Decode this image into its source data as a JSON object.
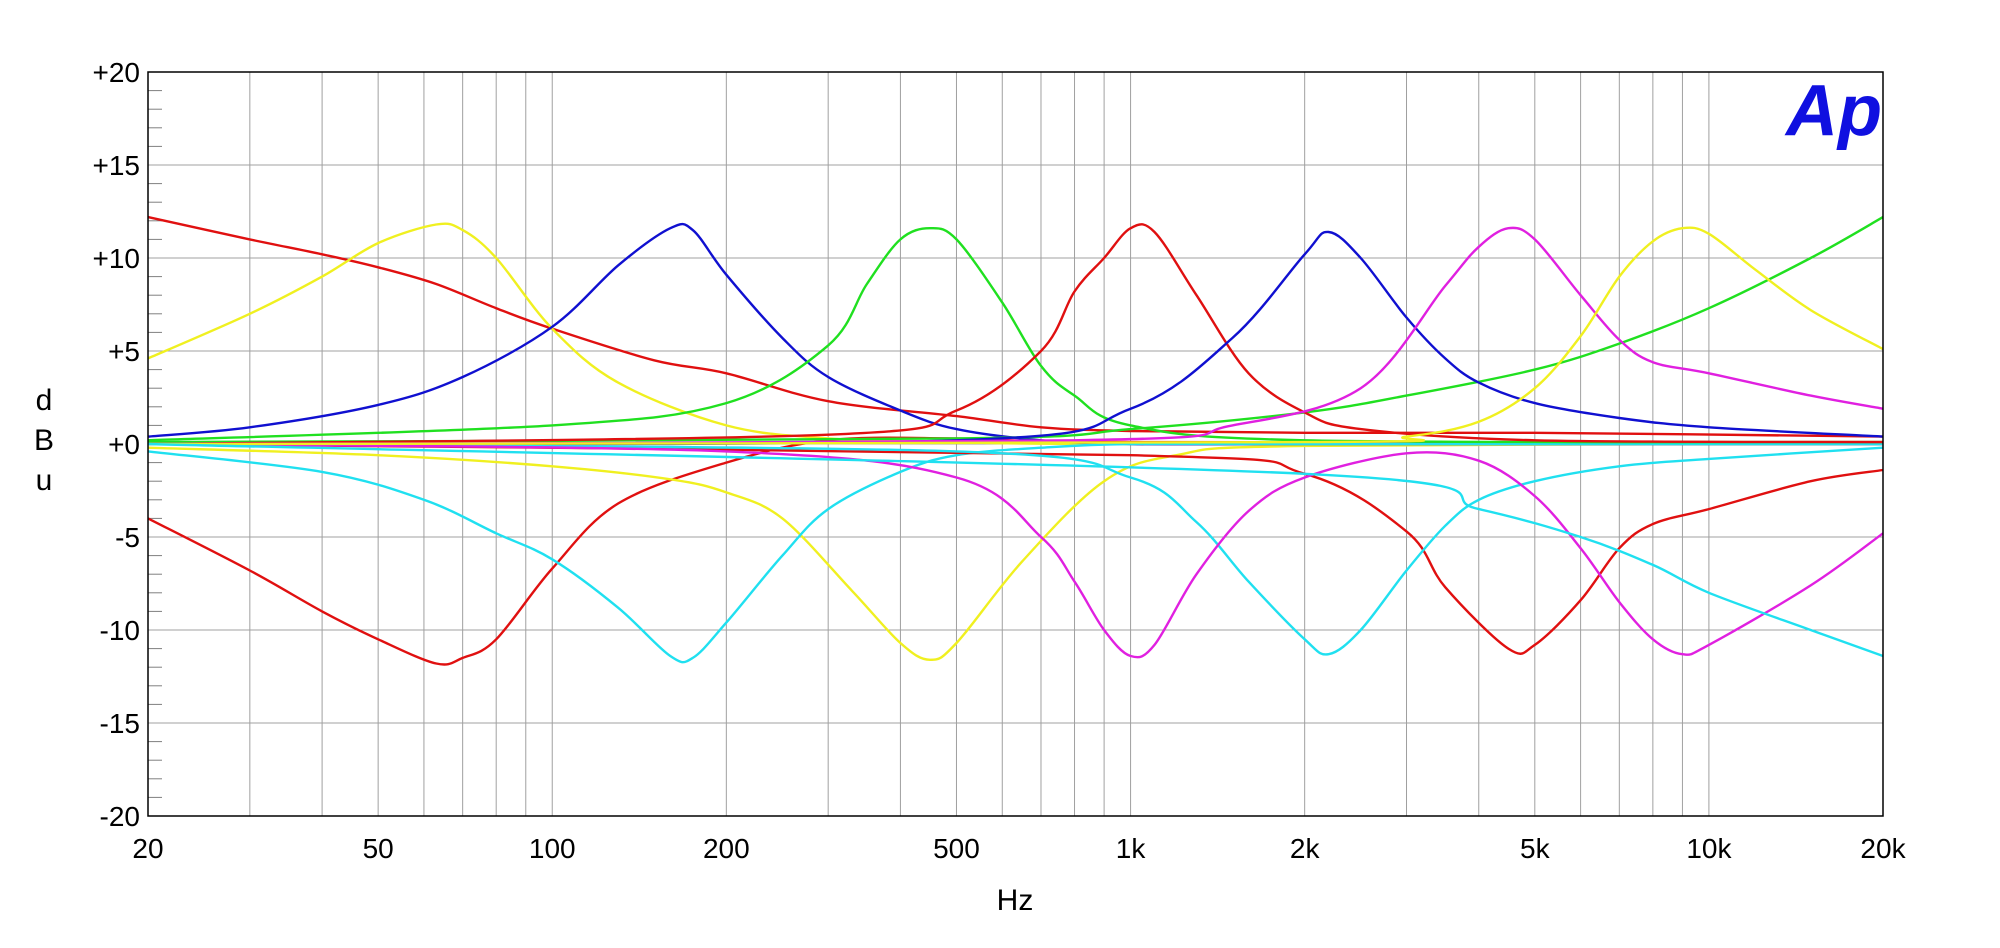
{
  "chart_data": {
    "type": "line",
    "title": "",
    "xlabel": "Hz",
    "ylabel_letters": [
      "d",
      "B",
      "u"
    ],
    "logo": "Ap",
    "x_scale": "log",
    "xlim": [
      20,
      20000
    ],
    "ylim": [
      -20,
      20
    ],
    "grid": true,
    "x_ticks": [
      {
        "value": 20,
        "label": "20"
      },
      {
        "value": 50,
        "label": "50"
      },
      {
        "value": 100,
        "label": "100"
      },
      {
        "value": 200,
        "label": "200"
      },
      {
        "value": 500,
        "label": "500"
      },
      {
        "value": 1000,
        "label": "1k"
      },
      {
        "value": 2000,
        "label": "2k"
      },
      {
        "value": 5000,
        "label": "5k"
      },
      {
        "value": 10000,
        "label": "10k"
      },
      {
        "value": 20000,
        "label": "20k"
      }
    ],
    "y_ticks": [
      {
        "value": 20,
        "label": "+20"
      },
      {
        "value": 15,
        "label": "+15"
      },
      {
        "value": 10,
        "label": "+10"
      },
      {
        "value": 5,
        "label": "+5"
      },
      {
        "value": 0,
        "label": "+0"
      },
      {
        "value": -5,
        "label": "-5"
      },
      {
        "value": -10,
        "label": "-10"
      },
      {
        "value": -15,
        "label": "-15"
      },
      {
        "value": -20,
        "label": "-20"
      }
    ],
    "series": [
      {
        "color": "#e01010",
        "x": [
          20,
          30,
          40,
          50,
          63,
          80,
          100,
          150,
          200,
          300,
          500,
          700,
          1000,
          2000,
          5000,
          20000
        ],
        "y": [
          12.2,
          11.0,
          10.2,
          9.5,
          8.6,
          7.3,
          6.2,
          4.5,
          3.8,
          2.3,
          1.5,
          0.9,
          0.7,
          0.6,
          0.6,
          0.4
        ]
      },
      {
        "color": "#e01010",
        "x": [
          20,
          30,
          40,
          50,
          63,
          70,
          80,
          100,
          130,
          200,
          300,
          500,
          1000,
          20000
        ],
        "y": [
          -4.0,
          -6.8,
          -9.0,
          -10.5,
          -11.8,
          -11.5,
          -10.5,
          -6.7,
          -3.2,
          -1.0,
          0.2,
          0.3,
          0.1,
          0.1
        ]
      },
      {
        "color": "#f0f020",
        "x": [
          20,
          30,
          40,
          50,
          63,
          70,
          80,
          100,
          130,
          200,
          300,
          500,
          1000,
          20000
        ],
        "y": [
          4.6,
          7.0,
          9.0,
          10.8,
          11.8,
          11.5,
          10.0,
          6.2,
          3.3,
          1.0,
          0.3,
          0.1,
          0.0,
          0.0
        ]
      },
      {
        "color": "#f0f020",
        "x": [
          20,
          50,
          100,
          160,
          200,
          250,
          330,
          400,
          450,
          500,
          650,
          900,
          1200,
          2000,
          20000
        ],
        "y": [
          -0.2,
          -0.6,
          -1.2,
          -1.9,
          -2.6,
          -4.0,
          -7.9,
          -10.7,
          -11.6,
          -10.7,
          -6.3,
          -2.0,
          -0.6,
          -0.1,
          0.0
        ]
      },
      {
        "color": "#1010d0",
        "x": [
          20,
          30,
          50,
          70,
          100,
          130,
          160,
          175,
          200,
          250,
          300,
          400,
          500,
          700,
          1000,
          2000,
          20000
        ],
        "y": [
          0.4,
          0.9,
          2.1,
          3.6,
          6.3,
          9.6,
          11.6,
          11.5,
          9.1,
          5.7,
          3.6,
          1.8,
          0.8,
          0.2,
          0.0,
          0.0,
          0.0
        ]
      },
      {
        "color": "#20e0f0",
        "x": [
          20,
          40,
          60,
          80,
          100,
          130,
          160,
          175,
          200,
          250,
          300,
          400,
          500,
          700,
          1000,
          2000,
          20000
        ],
        "y": [
          -0.4,
          -1.5,
          -3.0,
          -4.8,
          -6.2,
          -8.8,
          -11.4,
          -11.5,
          -9.6,
          -6.0,
          -3.5,
          -1.5,
          -0.6,
          -0.2,
          0.0,
          0.0,
          0.0
        ]
      },
      {
        "color": "#20e020",
        "x": [
          20,
          100,
          200,
          300,
          350,
          400,
          450,
          500,
          600,
          700,
          800,
          1000,
          2000,
          20000
        ],
        "y": [
          0.2,
          1.0,
          2.2,
          5.3,
          8.6,
          11.0,
          11.6,
          11.0,
          7.6,
          4.2,
          2.6,
          1.0,
          0.2,
          0.1
        ]
      },
      {
        "color": "#20e020",
        "x": [
          20,
          500,
          1000,
          2000,
          3000,
          5000,
          7000,
          10000,
          15000,
          20000
        ],
        "y": [
          0.1,
          0.3,
          0.8,
          1.7,
          2.6,
          4.0,
          5.4,
          7.3,
          10.0,
          12.2
        ]
      },
      {
        "color": "#e01010",
        "x": [
          20,
          300,
          500,
          700,
          800,
          900,
          1000,
          1100,
          1300,
          1600,
          2000,
          2500,
          5000,
          20000
        ],
        "y": [
          0.0,
          0.5,
          1.8,
          5.0,
          8.2,
          10.0,
          11.6,
          11.4,
          8.0,
          3.8,
          1.7,
          0.8,
          0.2,
          0.1
        ]
      },
      {
        "color": "#e01010",
        "x": [
          20,
          1000,
          2000,
          3000,
          3500,
          4500,
          5000,
          6000,
          7000,
          8000,
          10000,
          15000,
          20000
        ],
        "y": [
          0.0,
          -0.6,
          -1.6,
          -4.7,
          -7.7,
          -11.0,
          -10.8,
          -8.4,
          -5.6,
          -4.3,
          -3.5,
          -2.0,
          -1.4
        ]
      },
      {
        "color": "#1010d0",
        "x": [
          20,
          500,
          1000,
          1500,
          2000,
          2200,
          2500,
          3000,
          3500,
          4000,
          5000,
          7000,
          10000,
          20000
        ],
        "y": [
          0.0,
          0.2,
          1.9,
          5.7,
          10.2,
          11.4,
          10.0,
          6.8,
          4.6,
          3.3,
          2.2,
          1.4,
          0.9,
          0.4
        ]
      },
      {
        "color": "#20e0f0",
        "x": [
          20,
          500,
          1000,
          1300,
          1600,
          2000,
          2200,
          2500,
          3000,
          3500,
          4000,
          5000,
          7000,
          10000,
          20000
        ],
        "y": [
          0.0,
          -0.4,
          -1.8,
          -4.2,
          -7.4,
          -10.5,
          -11.3,
          -10.0,
          -6.8,
          -4.4,
          -3.0,
          -2.0,
          -1.2,
          -0.8,
          -0.2
        ]
      },
      {
        "color": "#e020e0",
        "x": [
          20,
          800,
          1500,
          2500,
          3500,
          4000,
          4500,
          5000,
          6000,
          7000,
          8000,
          10000,
          15000,
          20000
        ],
        "y": [
          0.0,
          0.2,
          1.0,
          3.0,
          8.5,
          10.6,
          11.6,
          11.0,
          8.0,
          5.6,
          4.4,
          3.8,
          2.6,
          1.9
        ]
      },
      {
        "color": "#e020e0",
        "x": [
          20,
          200,
          500,
          700,
          800,
          900,
          1000,
          1100,
          1300,
          1600,
          2000,
          3000,
          4000,
          5000,
          6000,
          7000,
          8000,
          9000,
          10000,
          15000,
          20000
        ],
        "y": [
          0.0,
          -0.4,
          -1.8,
          -5.0,
          -7.4,
          -10.0,
          -11.4,
          -10.8,
          -7.0,
          -3.6,
          -1.8,
          -0.5,
          -0.9,
          -2.8,
          -5.6,
          -8.5,
          -10.5,
          -11.3,
          -10.8,
          -7.6,
          -4.8
        ]
      },
      {
        "color": "#f0f020",
        "x": [
          20,
          2000,
          3000,
          4000,
          5000,
          6000,
          7000,
          8000,
          9000,
          10000,
          12000,
          15000,
          20000
        ],
        "y": [
          0.0,
          0.1,
          0.4,
          1.2,
          3.0,
          5.8,
          9.0,
          10.9,
          11.6,
          11.3,
          9.4,
          7.2,
          5.1
        ]
      },
      {
        "color": "#20e0f0",
        "x": [
          20,
          2000,
          4000,
          6000,
          8000,
          10000,
          15000,
          20000
        ],
        "y": [
          0.0,
          -1.6,
          -3.5,
          -5.0,
          -6.5,
          -8.0,
          -10.0,
          -11.4
        ]
      }
    ]
  }
}
